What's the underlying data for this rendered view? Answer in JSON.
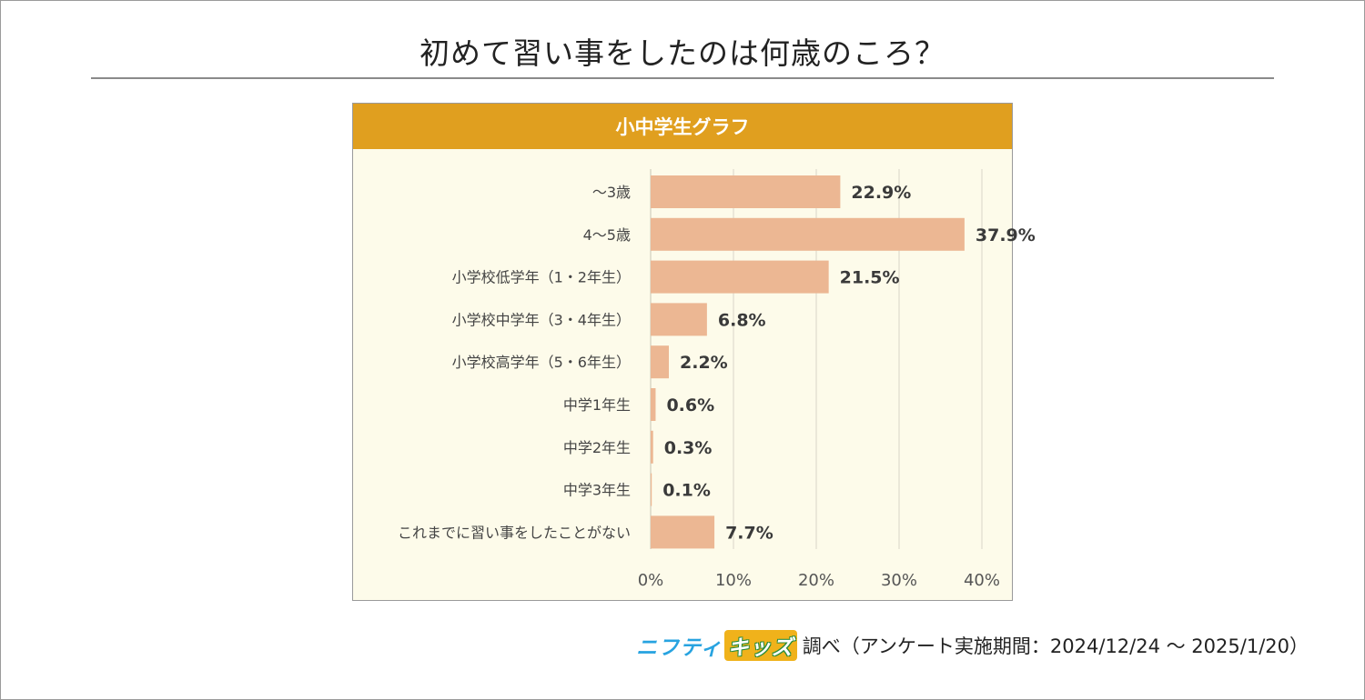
{
  "page": {
    "title": "初めて習い事をしたのは何歳のころ？"
  },
  "chart_data": {
    "type": "bar",
    "orientation": "horizontal",
    "title": "小中学生グラフ",
    "categories": [
      "～3歳",
      "4～5歳",
      "小学校低学年（1・2年生）",
      "小学校中学年（3・4年生）",
      "小学校高学年（5・6年生）",
      "中学1年生",
      "中学2年生",
      "中学3年生",
      "これまでに習い事をしたことがない"
    ],
    "values": [
      22.9,
      37.9,
      21.5,
      6.8,
      2.2,
      0.6,
      0.3,
      0.1,
      7.7
    ],
    "value_labels": [
      "22.9%",
      "37.9%",
      "21.5%",
      "6.8%",
      "2.2%",
      "0.6%",
      "0.3%",
      "0.1%",
      "7.7%"
    ],
    "xlim": [
      0,
      40
    ],
    "xticks": [
      "0%",
      "10%",
      "20%",
      "30%",
      "40%"
    ],
    "xtick_values": [
      0,
      10,
      20,
      30,
      40
    ],
    "grid": true,
    "colors": {
      "bar": "#ecb793",
      "header": "#e09f1f",
      "plot_bg": "#fdfbea",
      "grid": "#d9d6c8"
    }
  },
  "source": {
    "brand_part1": "ニフティ",
    "brand_part2": "キッズ",
    "text": "調べ（アンケート実施期間：2024/12/24 ～ 2025/1/20）"
  }
}
